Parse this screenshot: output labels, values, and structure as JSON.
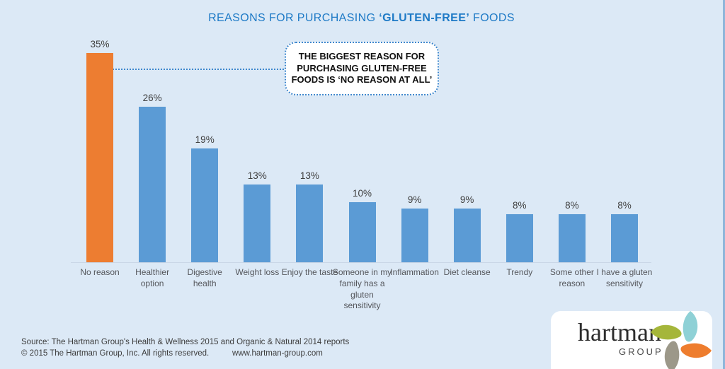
{
  "title": {
    "prefix": "REASONS FOR PURCHASING ",
    "highlight": "‘GLUTEN-FREE’",
    "suffix": " FOODS"
  },
  "callout": {
    "text": "THE BIGGEST REASON FOR\nPURCHASING GLUTEN-FREE\nFOODS IS ‘NO REASON AT ALL’"
  },
  "chart_data": {
    "type": "bar",
    "categories": [
      "No reason",
      "Healthier option",
      "Digestive health",
      "Weight loss",
      "Enjoy the taste",
      "Someone in my family has a gluten sensitivity",
      "Inflammation",
      "Diet cleanse",
      "Trendy",
      "Some other reason",
      "I have a gluten sensitivity"
    ],
    "values": [
      35,
      26,
      19,
      13,
      13,
      10,
      9,
      9,
      8,
      8,
      8
    ],
    "value_labels": [
      "35%",
      "26%",
      "19%",
      "13%",
      "13%",
      "10%",
      "9%",
      "9%",
      "8%",
      "8%",
      "8%"
    ],
    "title": "REASONS FOR PURCHASING ‘GLUTEN-FREE’ FOODS",
    "xlabel": "",
    "ylabel": "",
    "ylim": [
      0,
      38
    ],
    "grid": false,
    "legend": "none",
    "highlight_index": 0,
    "colors": {
      "highlight_bar": "#ED7D31",
      "default_bar": "#5B9BD5"
    }
  },
  "footer": {
    "source": "Source: The Hartman Group's Health & Wellness 2015 and Organic & Natural 2014 reports",
    "copyright": "© 2015 The Hartman Group, Inc. All rights reserved.",
    "website": "www.hartman-group.com"
  },
  "logo": {
    "name": "hartman",
    "subname": "GROUP",
    "pinwheel_colors": {
      "green": "#A5B63A",
      "teal": "#8FD1D6",
      "orange": "#EE7D2E",
      "gray": "#9C9889"
    }
  },
  "theme": {
    "background": "#DCE9F6",
    "title_blue": "#1E7AC6",
    "callout_border_blue": "#3E87CD",
    "edge_strip_blue": "#8FB6DA"
  }
}
